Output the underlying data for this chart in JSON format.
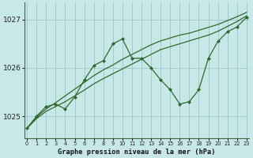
{
  "xlabel": "Graphe pression niveau de la mer (hPa)",
  "bg_color": "#c8e8e8",
  "grid_color": "#a0cccc",
  "line_color": "#2d6a2d",
  "x_values": [
    0,
    1,
    2,
    3,
    4,
    5,
    6,
    7,
    8,
    9,
    10,
    11,
    12,
    13,
    14,
    15,
    16,
    17,
    18,
    19,
    20,
    21,
    22,
    23
  ],
  "series1": [
    1024.75,
    1025.0,
    1025.2,
    1025.25,
    1025.15,
    1025.4,
    1025.75,
    1026.05,
    1026.15,
    1026.5,
    1026.6,
    1026.2,
    1026.2,
    1026.0,
    1025.75,
    1025.55,
    1025.25,
    1025.3,
    1025.55,
    1026.2,
    1026.55,
    1026.75,
    1026.85,
    1027.05
  ],
  "series2": [
    1024.75,
    1024.95,
    1025.1,
    1025.2,
    1025.3,
    1025.42,
    1025.54,
    1025.67,
    1025.78,
    1025.88,
    1025.98,
    1026.08,
    1026.18,
    1026.28,
    1026.38,
    1026.44,
    1026.5,
    1026.56,
    1026.62,
    1026.68,
    1026.76,
    1026.86,
    1026.96,
    1027.08
  ],
  "series3": [
    1024.75,
    1024.98,
    1025.15,
    1025.28,
    1025.42,
    1025.56,
    1025.7,
    1025.84,
    1025.96,
    1026.06,
    1026.18,
    1026.28,
    1026.38,
    1026.48,
    1026.56,
    1026.62,
    1026.68,
    1026.72,
    1026.78,
    1026.84,
    1026.9,
    1026.98,
    1027.06,
    1027.15
  ],
  "ylim_min": 1024.55,
  "ylim_max": 1027.35,
  "yticks": [
    1025,
    1026,
    1027
  ],
  "xticks": [
    0,
    1,
    2,
    3,
    4,
    5,
    6,
    7,
    8,
    9,
    10,
    11,
    12,
    13,
    14,
    15,
    16,
    17,
    18,
    19,
    20,
    21,
    22,
    23
  ]
}
